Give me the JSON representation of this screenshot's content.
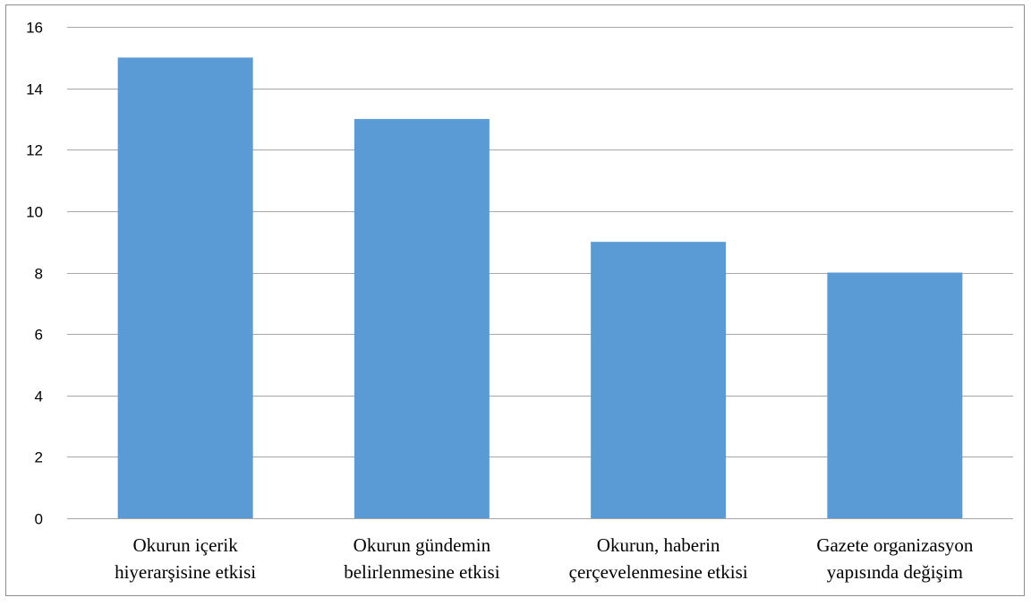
{
  "chart_data": {
    "type": "bar",
    "title": "",
    "xlabel": "",
    "ylabel": "",
    "categories": [
      [
        "Okurun içerik",
        "hiyerarşisine etkisi"
      ],
      [
        "Okurun gündemin",
        "belirlenmesine etkisi"
      ],
      [
        "Okurun, haberin",
        "çerçevelenmesine etkisi"
      ],
      [
        "Gazete organizasyon",
        "yapısında değişim"
      ]
    ],
    "values": [
      15,
      13,
      9,
      8
    ],
    "ylim": [
      0,
      16
    ],
    "yticks": [
      0,
      2,
      4,
      6,
      8,
      10,
      12,
      14,
      16
    ],
    "grid": true,
    "legend": "none",
    "colors": {
      "bar": "#5b9bd5",
      "grid": "#a6a6a6",
      "axis": "#a6a6a6"
    }
  }
}
